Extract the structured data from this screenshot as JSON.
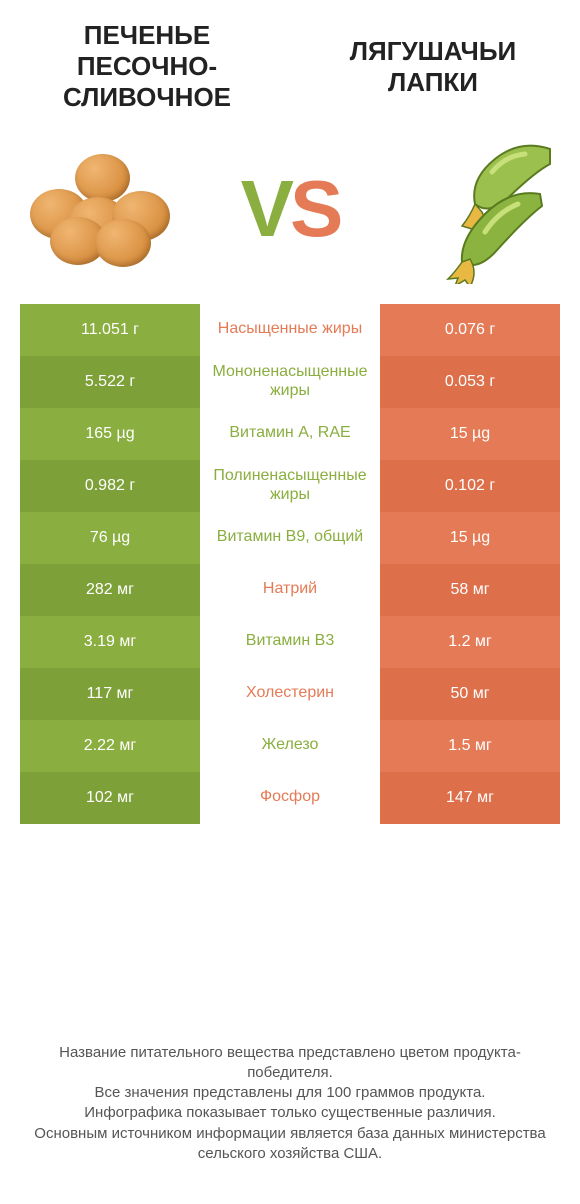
{
  "colors": {
    "green": "#8aae3f",
    "orange": "#e47b56",
    "green_dark": "#7ea038",
    "orange_dark": "#dd6f4a",
    "text_green": "#8aae3f",
    "text_orange": "#e47b56"
  },
  "header": {
    "left_title": "ПЕЧЕНЬЕ ПЕСОЧНО-СЛИВОЧНОЕ",
    "right_title": "ЛЯГУШАЧЬИ ЛАПКИ"
  },
  "vs": {
    "v": "V",
    "s": "S"
  },
  "rows": [
    {
      "left": "11.051 г",
      "mid": "Насыщенные жиры",
      "right": "0.076 г",
      "mid_color": "orange"
    },
    {
      "left": "5.522 г",
      "mid": "Мононенасыщенные жиры",
      "right": "0.053 г",
      "mid_color": "green"
    },
    {
      "left": "165 µg",
      "mid": "Витамин A, RAE",
      "right": "15 µg",
      "mid_color": "green"
    },
    {
      "left": "0.982 г",
      "mid": "Полиненасыщенные жиры",
      "right": "0.102 г",
      "mid_color": "green"
    },
    {
      "left": "76 µg",
      "mid": "Витамин B9, общий",
      "right": "15 µg",
      "mid_color": "green"
    },
    {
      "left": "282 мг",
      "mid": "Натрий",
      "right": "58 мг",
      "mid_color": "orange"
    },
    {
      "left": "3.19 мг",
      "mid": "Витамин B3",
      "right": "1.2 мг",
      "mid_color": "green"
    },
    {
      "left": "117 мг",
      "mid": "Холестерин",
      "right": "50 мг",
      "mid_color": "orange"
    },
    {
      "left": "2.22 мг",
      "mid": "Железо",
      "right": "1.5 мг",
      "mid_color": "green"
    },
    {
      "left": "102 мг",
      "mid": "Фосфор",
      "right": "147 мг",
      "mid_color": "orange"
    }
  ],
  "footer": {
    "l1": "Название питательного вещества представлено цветом продукта-победителя.",
    "l2": "Все значения представлены для 100 граммов продукта.",
    "l3": "Инфографика показывает только существенные различия.",
    "l4": "Основным источником информации является база данных министерства сельского хозяйства США."
  }
}
